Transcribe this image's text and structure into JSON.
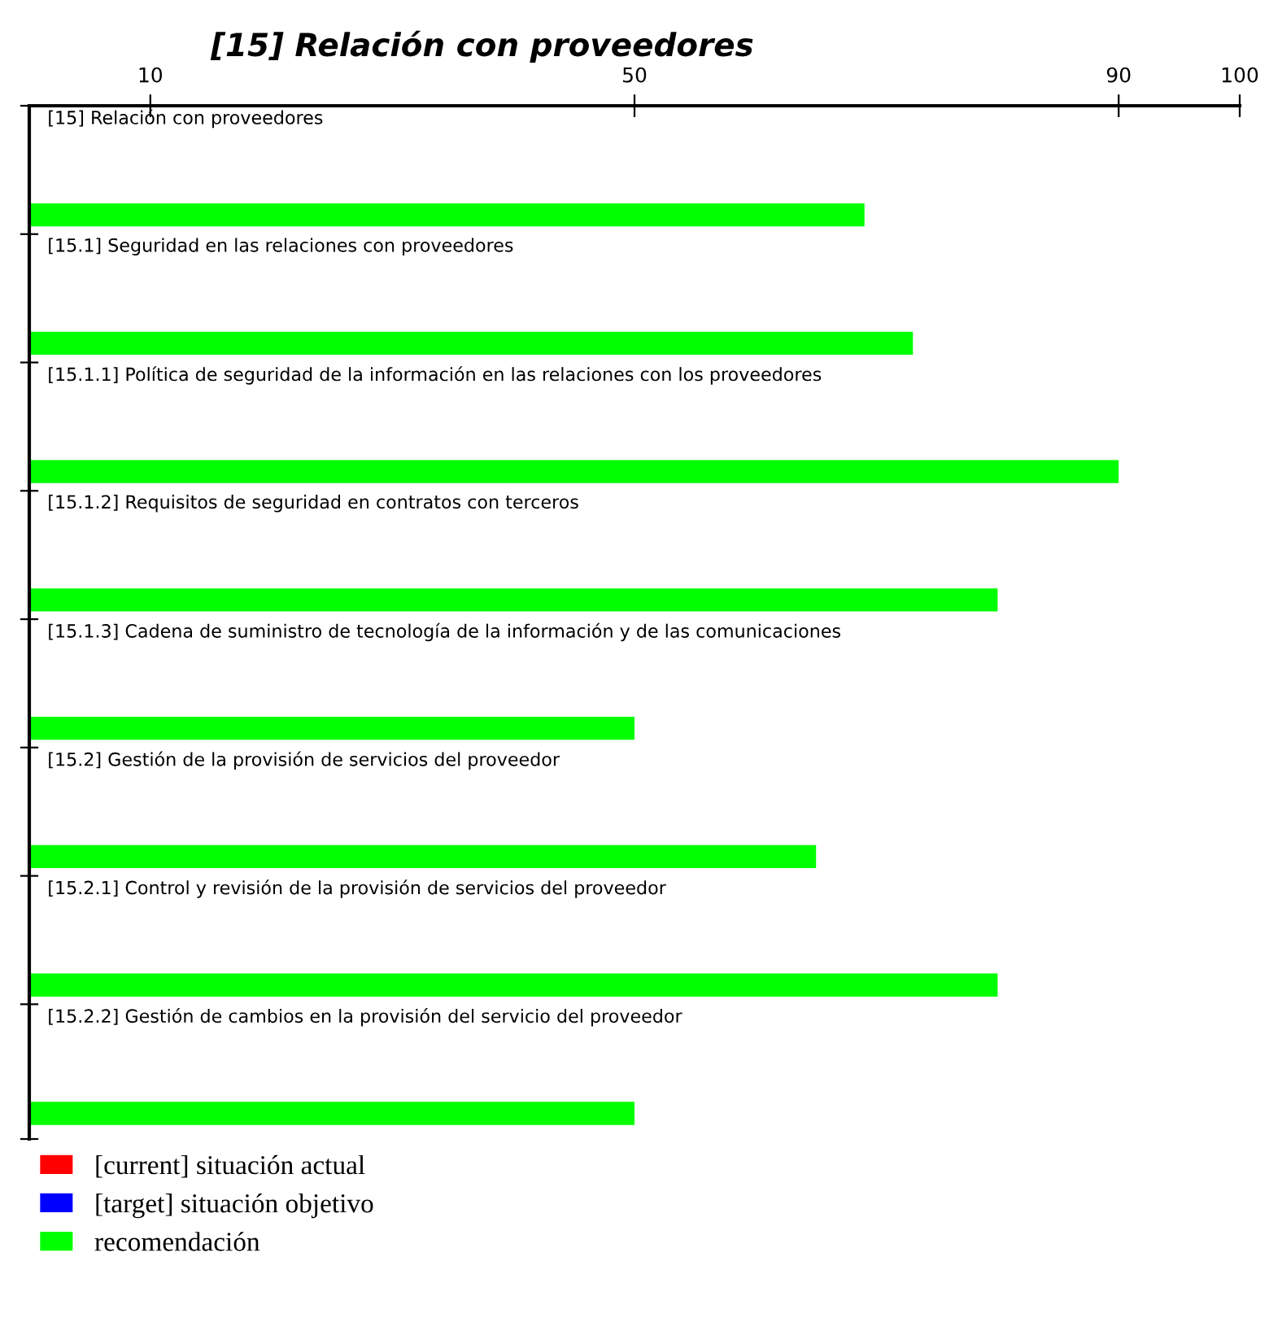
{
  "chart_data": {
    "type": "bar",
    "orientation": "horizontal",
    "title": "[15] Relación con proveedores",
    "categories": [
      "[15] Relación con proveedores",
      "[15.1] Seguridad en las relaciones con proveedores",
      "[15.1.1] Política de seguridad de la información en las relaciones con los proveedores",
      "[15.1.2] Requisitos de seguridad en contratos con terceros",
      "[15.1.3] Cadena de suministro de tecnología de la información y de las comunicaciones",
      "[15.2] Gestión de la provisión de servicios del proveedor",
      "[15.2.1] Control y revisión de la provisión de servicios del proveedor",
      "[15.2.2] Gestión de cambios en la provisión del servicio del proveedor"
    ],
    "series": [
      {
        "name": "[current] situación actual",
        "color": "#ff0000",
        "values": [
          null,
          null,
          null,
          null,
          null,
          null,
          null,
          null
        ]
      },
      {
        "name": "[target] situación objetivo",
        "color": "#0000ff",
        "values": [
          null,
          null,
          null,
          null,
          null,
          null,
          null,
          null
        ]
      },
      {
        "name": "recomendación",
        "color": "#00ff00",
        "values": [
          69,
          73,
          90,
          80,
          50,
          65,
          80,
          50
        ]
      }
    ],
    "xlim": [
      0,
      100
    ],
    "xticks": [
      10,
      50,
      90,
      100
    ],
    "grid": false,
    "legend": "bottom left"
  }
}
